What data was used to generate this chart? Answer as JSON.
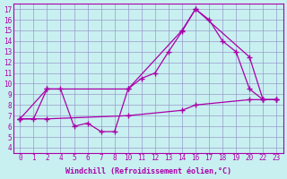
{
  "xlabel": "Windchill (Refroidissement éolien,°C)",
  "bg_color": "#c8f0f0",
  "grid_color": "#9999cc",
  "line_color": "#aa00aa",
  "xtick_labels": [
    "0",
    "1",
    "2",
    "4",
    "5",
    "6",
    "7",
    "8",
    "10",
    "11",
    "12",
    "13",
    "14",
    "16",
    "17",
    "18",
    "19",
    "20",
    "22",
    "23"
  ],
  "ytick_labels": [
    "4",
    "5",
    "6",
    "7",
    "8",
    "9",
    "10",
    "11",
    "12",
    "13",
    "14",
    "15",
    "16",
    "17"
  ],
  "ylim": [
    3.5,
    17.5
  ],
  "line1_xi": [
    0,
    1,
    2,
    3,
    4,
    5,
    6,
    7,
    8,
    9,
    10,
    11,
    12,
    13,
    14,
    15,
    16,
    17,
    18,
    19
  ],
  "line1_y": [
    6.7,
    6.7,
    9.5,
    9.5,
    6.0,
    6.3,
    5.5,
    5.5,
    9.5,
    10.5,
    11.0,
    13.0,
    14.9,
    17.0,
    16.0,
    14.0,
    13.0,
    9.5,
    8.5,
    8.5
  ],
  "line2_xi": [
    0,
    2,
    8,
    12,
    13,
    17,
    18,
    19
  ],
  "line2_y": [
    6.7,
    9.5,
    9.5,
    15.0,
    17.0,
    12.5,
    8.5,
    8.5
  ],
  "line3_xi": [
    0,
    2,
    8,
    12,
    13,
    17,
    18,
    19
  ],
  "line3_y": [
    6.7,
    6.7,
    7.0,
    7.5,
    8.0,
    8.5,
    8.5,
    8.5
  ]
}
